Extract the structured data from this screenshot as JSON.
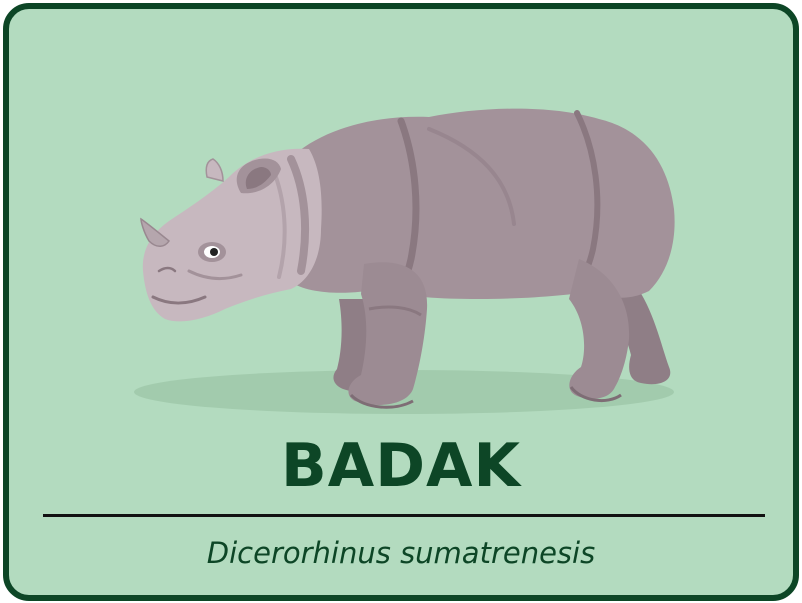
{
  "card": {
    "title": "BADAK",
    "scientific_name": "Dicerorhinus sumatrenesis"
  },
  "illustration": {
    "subject": "rhinoceros-icon"
  },
  "colors": {
    "background": "#b3dbbf",
    "border": "#0d4626",
    "title": "#0d4626",
    "rhino_body": "#a3929a",
    "rhino_shade": "#8a7880",
    "rhino_light": "#c7b8bf",
    "divider": "#111111"
  }
}
